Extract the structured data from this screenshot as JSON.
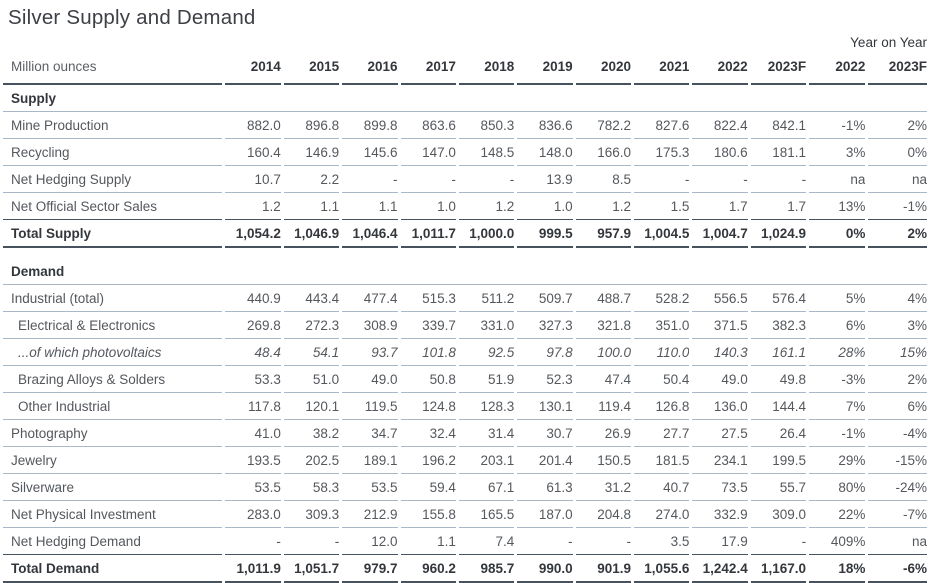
{
  "title": "Silver Supply and Demand",
  "unit_label": "Million ounces",
  "year_on_year_label": "Year on Year",
  "columns": [
    "2014",
    "2015",
    "2016",
    "2017",
    "2018",
    "2019",
    "2020",
    "2021",
    "2022",
    "2023F"
  ],
  "yoy_columns": [
    "2022",
    "2023F"
  ],
  "rows": [
    {
      "type": "section",
      "label": "Supply"
    },
    {
      "type": "data",
      "label": "Mine Production",
      "values": [
        "882.0",
        "896.8",
        "899.8",
        "863.6",
        "850.3",
        "836.6",
        "782.2",
        "827.6",
        "822.4",
        "842.1"
      ],
      "yoy": [
        "-1%",
        "2%"
      ]
    },
    {
      "type": "data",
      "label": "Recycling",
      "values": [
        "160.4",
        "146.9",
        "145.6",
        "147.0",
        "148.5",
        "148.0",
        "166.0",
        "175.3",
        "180.6",
        "181.1"
      ],
      "yoy": [
        "3%",
        "0%"
      ]
    },
    {
      "type": "data",
      "label": "Net Hedging Supply",
      "values": [
        "10.7",
        "2.2",
        "-",
        "-",
        "-",
        "13.9",
        "8.5",
        "-",
        "-",
        "-"
      ],
      "yoy": [
        "na",
        "na"
      ]
    },
    {
      "type": "data",
      "label": "Net Official Sector Sales",
      "values": [
        "1.2",
        "1.1",
        "1.1",
        "1.0",
        "1.2",
        "1.0",
        "1.2",
        "1.5",
        "1.7",
        "1.7"
      ],
      "yoy": [
        "13%",
        "-1%"
      ]
    },
    {
      "type": "total",
      "label": "Total Supply",
      "values": [
        "1,054.2",
        "1,046.9",
        "1,046.4",
        "1,011.7",
        "1,000.0",
        "999.5",
        "957.9",
        "1,004.5",
        "1,004.7",
        "1,024.9"
      ],
      "yoy": [
        "0%",
        "2%"
      ]
    },
    {
      "type": "spacer"
    },
    {
      "type": "section",
      "label": "Demand"
    },
    {
      "type": "data",
      "label": "Industrial (total)",
      "values": [
        "440.9",
        "443.4",
        "477.4",
        "515.3",
        "511.2",
        "509.7",
        "488.7",
        "528.2",
        "556.5",
        "576.4"
      ],
      "yoy": [
        "5%",
        "4%"
      ]
    },
    {
      "type": "data",
      "label": "Electrical & Electronics",
      "indent": true,
      "values": [
        "269.8",
        "272.3",
        "308.9",
        "339.7",
        "331.0",
        "327.3",
        "321.8",
        "351.0",
        "371.5",
        "382.3"
      ],
      "yoy": [
        "6%",
        "3%"
      ]
    },
    {
      "type": "data",
      "label": "...of which photovoltaics",
      "indent": true,
      "italic": true,
      "values": [
        "48.4",
        "54.1",
        "93.7",
        "101.8",
        "92.5",
        "97.8",
        "100.0",
        "110.0",
        "140.3",
        "161.1"
      ],
      "yoy": [
        "28%",
        "15%"
      ]
    },
    {
      "type": "data",
      "label": "Brazing Alloys & Solders",
      "indent": true,
      "values": [
        "53.3",
        "51.0",
        "49.0",
        "50.8",
        "51.9",
        "52.3",
        "47.4",
        "50.4",
        "49.0",
        "49.8"
      ],
      "yoy": [
        "-3%",
        "2%"
      ]
    },
    {
      "type": "data",
      "label": "Other Industrial",
      "indent": true,
      "values": [
        "117.8",
        "120.1",
        "119.5",
        "124.8",
        "128.3",
        "130.1",
        "119.4",
        "126.8",
        "136.0",
        "144.4"
      ],
      "yoy": [
        "7%",
        "6%"
      ]
    },
    {
      "type": "data",
      "label": "Photography",
      "values": [
        "41.0",
        "38.2",
        "34.7",
        "32.4",
        "31.4",
        "30.7",
        "26.9",
        "27.7",
        "27.5",
        "26.4"
      ],
      "yoy": [
        "-1%",
        "-4%"
      ]
    },
    {
      "type": "data",
      "label": "Jewelry",
      "values": [
        "193.5",
        "202.5",
        "189.1",
        "196.2",
        "203.1",
        "201.4",
        "150.5",
        "181.5",
        "234.1",
        "199.5"
      ],
      "yoy": [
        "29%",
        "-15%"
      ]
    },
    {
      "type": "data",
      "label": "Silverware",
      "values": [
        "53.5",
        "58.3",
        "53.5",
        "59.4",
        "67.1",
        "61.3",
        "31.2",
        "40.7",
        "73.5",
        "55.7"
      ],
      "yoy": [
        "80%",
        "-24%"
      ]
    },
    {
      "type": "data",
      "label": "Net Physical Investment",
      "values": [
        "283.0",
        "309.3",
        "212.9",
        "155.8",
        "165.5",
        "187.0",
        "204.8",
        "274.0",
        "332.9",
        "309.0"
      ],
      "yoy": [
        "22%",
        "-7%"
      ]
    },
    {
      "type": "data",
      "label": "Net Hedging Demand",
      "values": [
        "-",
        "-",
        "12.0",
        "1.1",
        "7.4",
        "-",
        "-",
        "3.5",
        "17.9",
        "-"
      ],
      "yoy": [
        "409%",
        "na"
      ]
    },
    {
      "type": "total",
      "label": "Total Demand",
      "values": [
        "1,011.9",
        "1,051.7",
        "979.7",
        "960.2",
        "985.7",
        "990.0",
        "901.9",
        "1,055.6",
        "1,242.4",
        "1,167.0"
      ],
      "yoy": [
        "18%",
        "-6%"
      ]
    }
  ],
  "colors": {
    "text": "#54585d",
    "text_strong": "#33373c",
    "line_light": "#a9b8c6",
    "line_dark": "#46525e"
  }
}
